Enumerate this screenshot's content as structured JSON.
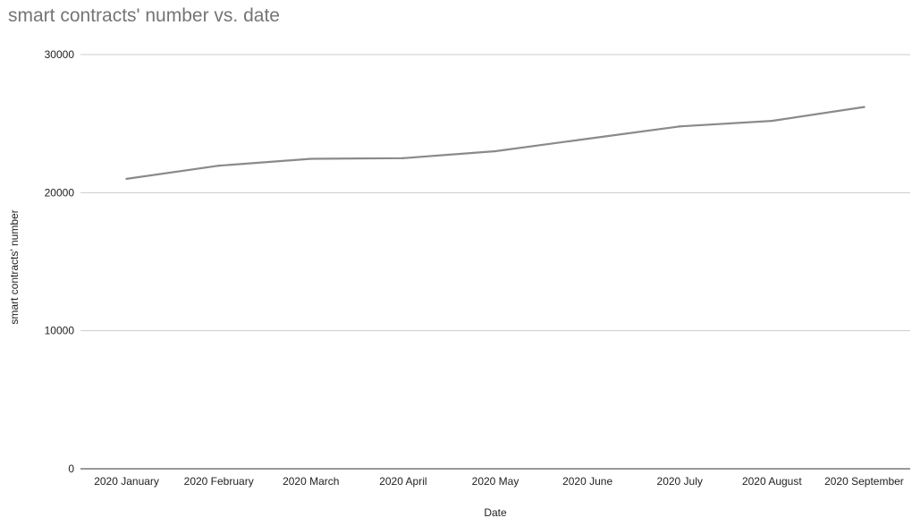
{
  "chart_data": {
    "type": "line",
    "title": "smart contracts' number vs. date",
    "xlabel": "Date",
    "ylabel": "smart contracts' number",
    "categories": [
      "2020 January",
      "2020 February",
      "2020 March",
      "2020 April",
      "2020 May",
      "2020 June",
      "2020 July",
      "2020 August",
      "2020 September"
    ],
    "series": [
      {
        "values": [
          21000,
          21950,
          22450,
          22500,
          23000,
          23900,
          24800,
          25200,
          26200
        ]
      }
    ],
    "ylim": [
      0,
      30000
    ],
    "yticks": [
      "0",
      "10000",
      "20000",
      "30000"
    ],
    "grid": true,
    "colors": {
      "line": "#8a8a8a",
      "grid": "#cccccc",
      "axis": "#333333"
    }
  }
}
